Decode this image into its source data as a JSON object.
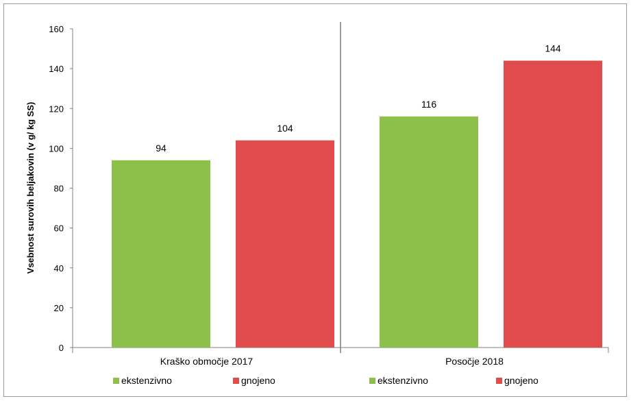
{
  "chart_data": {
    "type": "bar",
    "ylabel": "Vsebnost surovih beljakovin (v g/ kg SS)",
    "xlabel": "",
    "ylim": [
      0,
      160
    ],
    "yticks": [
      0,
      20,
      40,
      60,
      80,
      100,
      120,
      140,
      160
    ],
    "grid": false,
    "legend_position": "bottom",
    "groups": [
      {
        "name": "Kraško območje 2017",
        "bars": [
          {
            "series": "ekstenzivno",
            "value": 94
          },
          {
            "series": "gnojeno",
            "value": 104
          }
        ]
      },
      {
        "name": "Posočje 2018",
        "bars": [
          {
            "series": "ekstenzivno",
            "value": 116
          },
          {
            "series": "gnojeno",
            "value": 144
          }
        ]
      }
    ],
    "series": [
      {
        "name": "ekstenzivno",
        "color": "#8dc04b"
      },
      {
        "name": "gnojeno",
        "color": "#e04b4b"
      }
    ],
    "legend": [
      {
        "label": "ekstenzivno",
        "color": "#8dc04b"
      },
      {
        "label": "gnojeno",
        "color": "#e04b4b"
      },
      {
        "label": "ekstenzivno",
        "color": "#8dc04b"
      },
      {
        "label": "gnojeno",
        "color": "#e04b4b"
      }
    ]
  }
}
